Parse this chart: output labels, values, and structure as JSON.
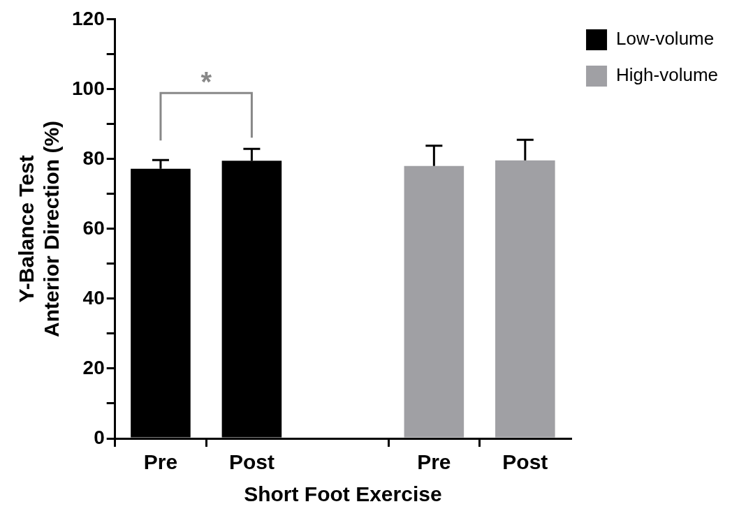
{
  "chart_data": {
    "type": "bar",
    "xlabel": "Short Foot Exercise",
    "ylabel": "Y-Balance Test\nAnterior Direction (%)",
    "categories": [
      "Pre",
      "Post",
      null,
      "Pre",
      "Post"
    ],
    "series": [
      {
        "name": "Low-volume",
        "color": "#000000",
        "values": [
          77.2,
          79.5,
          null,
          null,
          null
        ],
        "errors": [
          [
            77.2,
            79.7
          ],
          [
            79.5,
            82.9
          ],
          null,
          null,
          null
        ]
      },
      {
        "name": "High-volume",
        "color": "#a0a0a4",
        "values": [
          null,
          null,
          null,
          78,
          79.6
        ],
        "errors": [
          null,
          null,
          null,
          [
            78,
            83.8
          ],
          [
            79.6,
            85.5
          ]
        ]
      }
    ],
    "ylim": [
      0,
      120
    ],
    "yticks": [
      0,
      {
        "value": 10,
        "label": null
      },
      20,
      {
        "value": 30,
        "label": null
      },
      40,
      {
        "value": 50,
        "label": null
      },
      60,
      {
        "value": 70,
        "label": null
      },
      80,
      {
        "value": 90,
        "label": null
      },
      100,
      {
        "value": 110,
        "label": null
      },
      120
    ],
    "legend": "top right",
    "annotations": [
      "*"
    ]
  }
}
